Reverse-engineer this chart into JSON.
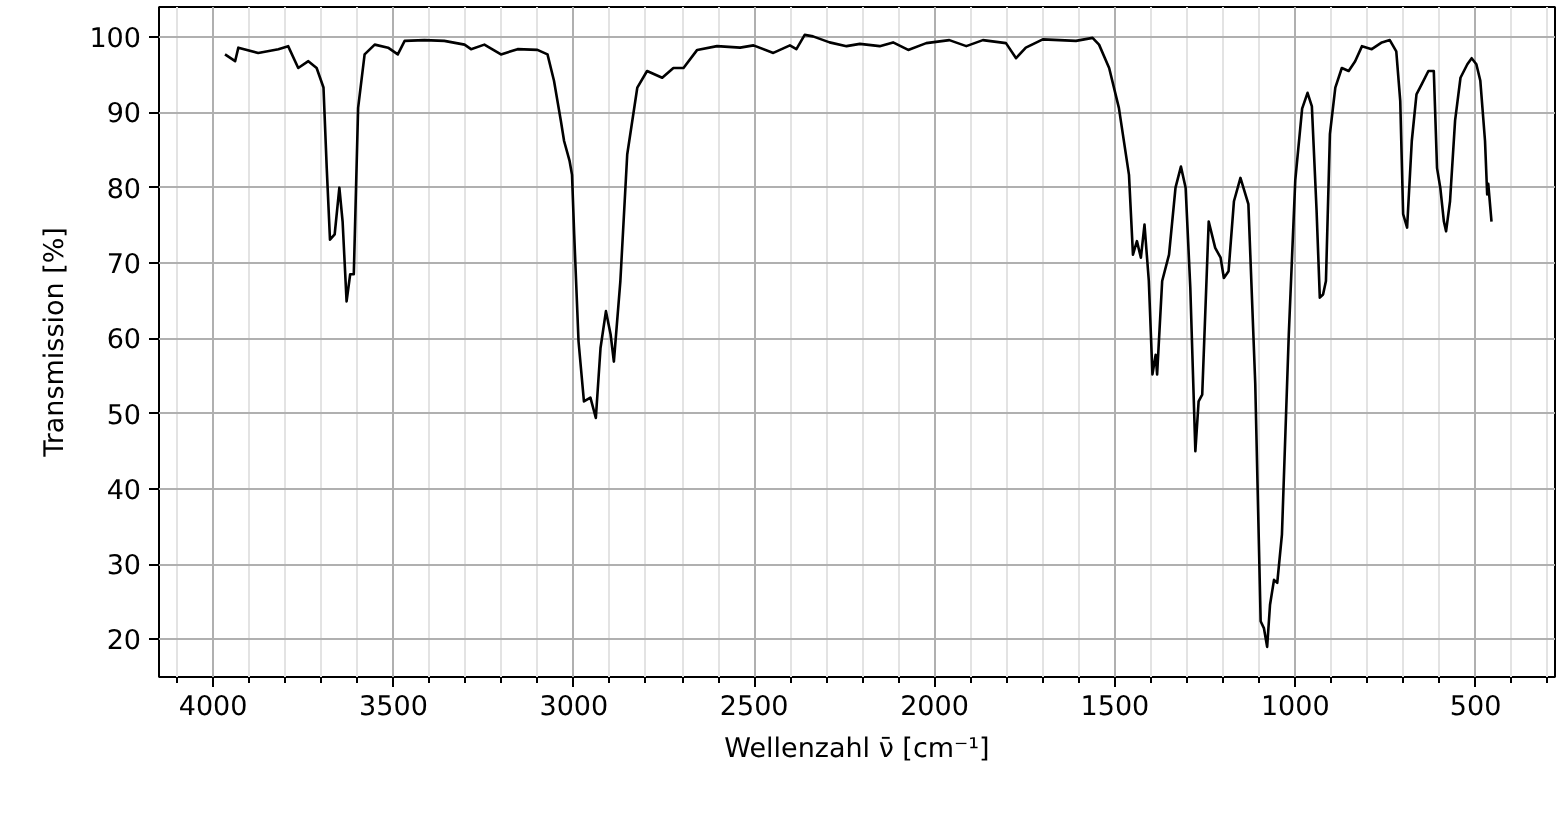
{
  "chart_data": {
    "type": "line",
    "xlabel": "Wellenzahl ν̄ [cm⁻¹]",
    "ylabel": "Transmission [%]",
    "xlim": [
      4150,
      280
    ],
    "ylim": [
      15,
      104
    ],
    "xticks": [
      {
        "value": 300,
        "label": null
      },
      {
        "value": 400,
        "label": null
      },
      500,
      {
        "value": 600,
        "label": null
      },
      {
        "value": 700,
        "label": null
      },
      {
        "value": 800,
        "label": null
      },
      {
        "value": 900,
        "label": null
      },
      1000,
      {
        "value": 1100,
        "label": null
      },
      {
        "value": 1200,
        "label": null
      },
      {
        "value": 1300,
        "label": null
      },
      {
        "value": 1400,
        "label": null
      },
      1500,
      {
        "value": 1600,
        "label": null
      },
      {
        "value": 1700,
        "label": null
      },
      {
        "value": 1800,
        "label": null
      },
      {
        "value": 1900,
        "label": null
      },
      2000,
      {
        "value": 2100,
        "label": null
      },
      {
        "value": 2200,
        "label": null
      },
      {
        "value": 2300,
        "label": null
      },
      {
        "value": 2400,
        "label": null
      },
      2500,
      {
        "value": 2600,
        "label": null
      },
      {
        "value": 2700,
        "label": null
      },
      {
        "value": 2800,
        "label": null
      },
      {
        "value": 2900,
        "label": null
      },
      3000,
      {
        "value": 3100,
        "label": null
      },
      {
        "value": 3200,
        "label": null
      },
      {
        "value": 3300,
        "label": null
      },
      {
        "value": 3400,
        "label": null
      },
      3500,
      {
        "value": 3600,
        "label": null
      },
      {
        "value": 3700,
        "label": null
      },
      {
        "value": 3800,
        "label": null
      },
      {
        "value": 3900,
        "label": null
      },
      4000,
      {
        "value": 4100,
        "label": null
      }
    ],
    "yticks": [
      20,
      30,
      40,
      50,
      60,
      70,
      80,
      90,
      100
    ],
    "grid": true,
    "series": [
      {
        "color": "#000000",
        "x": [
          3967,
          3939,
          3930,
          3875,
          3819,
          3792,
          3764,
          3736,
          3713,
          3694,
          3685,
          3676,
          3663,
          3650,
          3641,
          3630,
          3620,
          3610,
          3598,
          3580,
          3552,
          3515,
          3488,
          3469,
          3414,
          3359,
          3303,
          3285,
          3248,
          3202,
          3156,
          3101,
          3073,
          3055,
          3036,
          3027,
          3012,
          3005,
          2999,
          2987,
          2972,
          2954,
          2939,
          2926,
          2911,
          2898,
          2889,
          2871,
          2852,
          2824,
          2797,
          2755,
          2724,
          2696,
          2658,
          2603,
          2539,
          2502,
          2447,
          2401,
          2383,
          2360,
          2337,
          2291,
          2244,
          2207,
          2152,
          2115,
          2073,
          2023,
          1959,
          1912,
          1866,
          1802,
          1774,
          1747,
          1700,
          1608,
          1562,
          1544,
          1516,
          1489,
          1461,
          1450,
          1439,
          1428,
          1418,
          1406,
          1396,
          1387,
          1383,
          1369,
          1350,
          1332,
          1317,
          1304,
          1291,
          1277,
          1268,
          1258,
          1240,
          1222,
          1207,
          1198,
          1185,
          1170,
          1152,
          1130,
          1111,
          1096,
          1087,
          1078,
          1070,
          1059,
          1050,
          1037,
          1018,
          1000,
          981,
          966,
          954,
          941,
          932,
          923,
          915,
          904,
          889,
          871,
          852,
          834,
          815,
          788,
          760,
          738,
          720,
          709,
          701,
          690,
          677,
          664,
          649,
          631,
          616,
          607,
          598,
          588,
          582,
          571,
          557,
          542,
          523,
          511,
          498,
          487,
          474,
          468,
          465,
          456
        ],
        "values": [
          97.7,
          96.8,
          98.6,
          97.9,
          98.4,
          98.8,
          95.9,
          96.8,
          95.9,
          93.3,
          82.6,
          73.1,
          73.8,
          80.0,
          75.5,
          64.9,
          68.5,
          68.5,
          90.6,
          97.7,
          99.0,
          98.6,
          97.7,
          99.5,
          99.6,
          99.5,
          99.0,
          98.4,
          99.0,
          97.7,
          98.4,
          98.3,
          97.7,
          94.2,
          88.9,
          86.2,
          83.6,
          81.7,
          73.8,
          59.6,
          51.6,
          52.1,
          49.4,
          58.7,
          63.6,
          60.5,
          56.9,
          67.6,
          84.4,
          93.3,
          95.5,
          94.6,
          95.9,
          95.9,
          98.3,
          98.8,
          98.6,
          98.9,
          97.9,
          98.9,
          98.4,
          100.3,
          100.1,
          99.3,
          98.8,
          99.1,
          98.8,
          99.3,
          98.3,
          99.2,
          99.6,
          98.8,
          99.6,
          99.2,
          97.2,
          98.6,
          99.7,
          99.5,
          99.9,
          99.0,
          95.9,
          90.6,
          81.7,
          71.1,
          72.9,
          70.7,
          75.1,
          67.6,
          55.2,
          57.8,
          55.2,
          67.6,
          71.1,
          80.0,
          82.8,
          80.0,
          66.7,
          45.0,
          51.6,
          52.5,
          75.5,
          72.0,
          70.7,
          68.0,
          68.9,
          78.2,
          81.3,
          77.8,
          54.0,
          22.4,
          21.5,
          19.0,
          24.6,
          27.9,
          27.5,
          33.9,
          60.5,
          81.0,
          90.5,
          92.6,
          90.8,
          77.0,
          65.4,
          65.8,
          67.6,
          87.1,
          93.3,
          95.9,
          95.5,
          96.8,
          98.8,
          98.4,
          99.3,
          99.6,
          98.1,
          91.5,
          76.5,
          74.7,
          86.2,
          92.4,
          93.8,
          95.5,
          95.5,
          82.6,
          80.0,
          75.5,
          74.2,
          78.2,
          88.9,
          94.6,
          96.4,
          97.2,
          96.4,
          94.2,
          86.2,
          79.1,
          80.5,
          75.5
        ]
      }
    ]
  }
}
